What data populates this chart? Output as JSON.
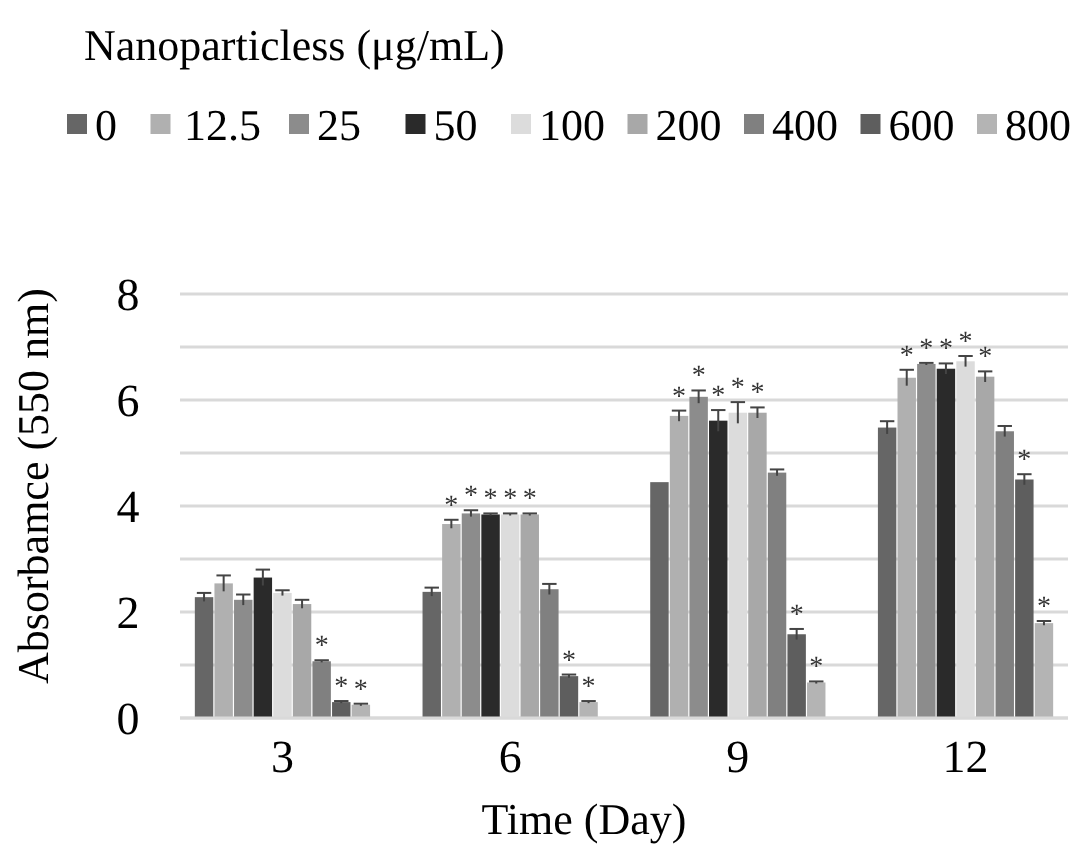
{
  "chart_data": {
    "type": "bar",
    "legend_title": "Nanoparticless (μg/mL)",
    "xlabel": "Time (Day)",
    "ylabel": "Absorbamce (550 nm)",
    "categories": [
      "3",
      "6",
      "9",
      "12"
    ],
    "ylim": [
      0,
      8
    ],
    "yticks": [
      0,
      {
        "value": 1,
        "label": null
      },
      2,
      {
        "value": 3,
        "label": null
      },
      4,
      {
        "value": 5,
        "label": null
      },
      6,
      {
        "value": 7,
        "label": null
      },
      8
    ],
    "grid": "y",
    "legend": "top",
    "series": [
      {
        "name": "0",
        "color": "#666666",
        "values": [
          2.28,
          2.38,
          4.45,
          5.48
        ],
        "errors": [
          0.08,
          0.08,
          null,
          0.12
        ],
        "value_labels": [
          null,
          null,
          null,
          null
        ]
      },
      {
        "name": "12.5",
        "color": "#b0b0b0",
        "values": [
          2.54,
          3.66,
          5.7,
          6.42
        ],
        "errors": [
          0.15,
          0.08,
          0.1,
          0.15
        ],
        "value_labels": [
          null,
          "*",
          "*",
          "*"
        ]
      },
      {
        "name": "25",
        "color": "#8c8c8c",
        "values": [
          2.23,
          3.86,
          6.06,
          6.68
        ],
        "errors": [
          0.1,
          0.06,
          0.12,
          0.02
        ],
        "value_labels": [
          null,
          "*",
          "*",
          "*"
        ]
      },
      {
        "name": "50",
        "color": "#2a2a2a",
        "values": [
          2.65,
          3.84,
          5.61,
          6.59
        ],
        "errors": [
          0.15,
          0.02,
          0.2,
          0.1
        ],
        "value_labels": [
          null,
          "*",
          "*",
          "*"
        ]
      },
      {
        "name": "100",
        "color": "#dcdcdc",
        "values": [
          2.36,
          3.84,
          5.76,
          6.73
        ],
        "errors": [
          0.05,
          0.02,
          0.2,
          0.1
        ],
        "value_labels": [
          null,
          "*",
          "*",
          "*"
        ]
      },
      {
        "name": "200",
        "color": "#a8a8a8",
        "values": [
          2.15,
          3.84,
          5.76,
          6.44
        ],
        "errors": [
          0.08,
          0.02,
          0.1,
          0.1
        ],
        "value_labels": [
          null,
          "*",
          "*",
          "*"
        ]
      },
      {
        "name": "400",
        "color": "#808080",
        "values": [
          1.07,
          2.43,
          4.63,
          5.41
        ],
        "errors": [
          0.02,
          0.1,
          0.06,
          0.1
        ],
        "value_labels": [
          "*",
          null,
          null,
          null
        ]
      },
      {
        "name": "600",
        "color": "#5e5e5e",
        "values": [
          0.3,
          0.79,
          1.58,
          4.5
        ],
        "errors": [
          0.02,
          0.03,
          0.1,
          0.1
        ],
        "value_labels": [
          "*",
          "*",
          "*",
          "*"
        ]
      },
      {
        "name": "800",
        "color": "#b4b4b4",
        "values": [
          0.25,
          0.3,
          0.67,
          1.79
        ],
        "errors": [
          0.02,
          0.02,
          0.02,
          0.04
        ],
        "value_labels": [
          "*",
          "*",
          "*",
          "*"
        ]
      }
    ]
  }
}
